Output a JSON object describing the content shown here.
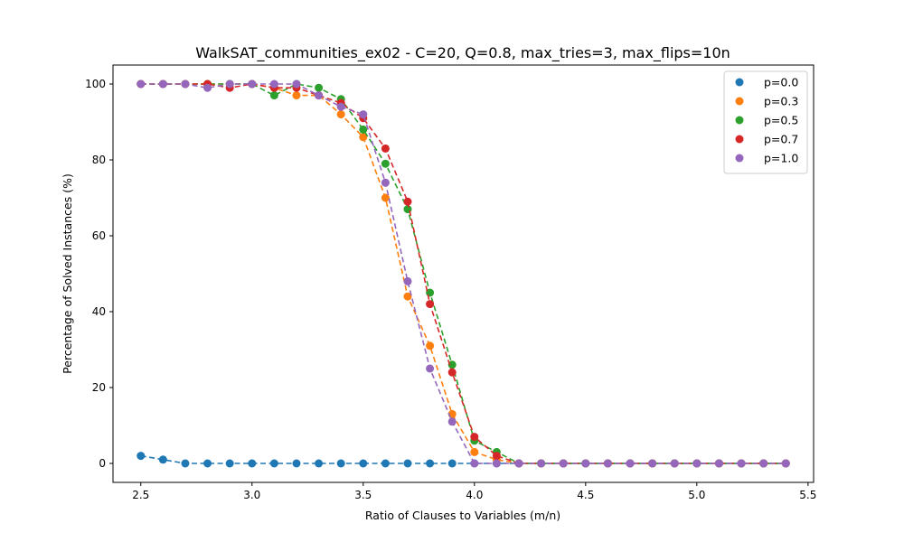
{
  "chart_data": {
    "type": "scatter",
    "title": "WalkSAT_communities_ex02 - C=20, Q=0.8, max_tries=3, max_flips=10n",
    "xlabel": "Ratio of Clauses to Variables (m/n)",
    "ylabel": "Percentage of Solved Instances (%)",
    "xlim": [
      2.375,
      5.525
    ],
    "ylim": [
      -5,
      105
    ],
    "xticks": [
      2.5,
      3.0,
      3.5,
      4.0,
      4.5,
      5.0,
      5.5
    ],
    "xtick_labels": [
      "2.5",
      "3.0",
      "3.5",
      "4.0",
      "4.5",
      "5.0",
      "5.5"
    ],
    "yticks": [
      0,
      20,
      40,
      60,
      80,
      100
    ],
    "ytick_labels": [
      "0",
      "20",
      "40",
      "60",
      "80",
      "100"
    ],
    "grid": false,
    "legend_position": "top-right",
    "line_style": "dashed",
    "x": [
      2.5,
      2.6,
      2.7,
      2.8,
      2.9,
      3.0,
      3.1,
      3.2,
      3.3,
      3.4,
      3.5,
      3.6,
      3.7,
      3.8,
      3.9,
      4.0,
      4.1,
      4.2,
      4.3,
      4.4,
      4.5,
      4.6,
      4.7,
      4.8,
      4.9,
      5.0,
      5.1,
      5.2,
      5.3,
      5.4
    ],
    "series": [
      {
        "name": "p=0.0",
        "color": "#1f77b4",
        "values": [
          2,
          1,
          0,
          0,
          0,
          0,
          0,
          0,
          0,
          0,
          0,
          0,
          0,
          0,
          0,
          0,
          0,
          0,
          0,
          0,
          0,
          0,
          0,
          0,
          0,
          0,
          0,
          0,
          0,
          0
        ]
      },
      {
        "name": "p=0.3",
        "color": "#ff7f0e",
        "values": [
          100,
          100,
          100,
          100,
          100,
          100,
          99,
          97,
          97,
          92,
          86,
          70,
          44,
          31,
          13,
          3,
          1,
          0,
          0,
          0,
          0,
          0,
          0,
          0,
          0,
          0,
          0,
          0,
          0,
          0
        ]
      },
      {
        "name": "p=0.5",
        "color": "#2ca02c",
        "values": [
          100,
          100,
          100,
          100,
          100,
          100,
          97,
          100,
          99,
          96,
          88,
          79,
          67,
          45,
          26,
          6,
          3,
          0,
          0,
          0,
          0,
          0,
          0,
          0,
          0,
          0,
          0,
          0,
          0,
          0
        ]
      },
      {
        "name": "p=0.7",
        "color": "#d62728",
        "values": [
          100,
          100,
          100,
          100,
          99,
          100,
          99,
          99,
          97,
          95,
          91,
          83,
          69,
          42,
          24,
          7,
          2,
          0,
          0,
          0,
          0,
          0,
          0,
          0,
          0,
          0,
          0,
          0,
          0,
          0
        ]
      },
      {
        "name": "p=1.0",
        "color": "#9467bd",
        "values": [
          100,
          100,
          100,
          99,
          100,
          100,
          100,
          100,
          97,
          94,
          92,
          74,
          48,
          25,
          11,
          0,
          0,
          0,
          0,
          0,
          0,
          0,
          0,
          0,
          0,
          0,
          0,
          0,
          0,
          0
        ]
      }
    ]
  }
}
